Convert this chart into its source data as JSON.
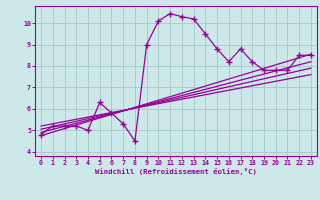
{
  "xlabel": "Windchill (Refroidissement éolien,°C)",
  "bg_color": "#cce8e8",
  "grid_color": "#aacccc",
  "line_color": "#990099",
  "xlim": [
    -0.5,
    23.5
  ],
  "ylim": [
    3.8,
    10.8
  ],
  "xticks": [
    0,
    1,
    2,
    3,
    4,
    5,
    6,
    7,
    8,
    9,
    10,
    11,
    12,
    13,
    14,
    15,
    16,
    17,
    18,
    19,
    20,
    21,
    22,
    23
  ],
  "yticks": [
    4,
    5,
    6,
    7,
    8,
    9,
    10
  ],
  "main_x": [
    0,
    1,
    2,
    3,
    4,
    5,
    6,
    7,
    8,
    9,
    10,
    11,
    12,
    13,
    14,
    15,
    16,
    17,
    18,
    19,
    20,
    21,
    22,
    23
  ],
  "main_y": [
    4.8,
    5.2,
    5.2,
    5.2,
    5.0,
    6.3,
    5.8,
    5.3,
    4.5,
    9.0,
    10.1,
    10.45,
    10.3,
    10.2,
    9.5,
    8.8,
    8.2,
    8.8,
    8.2,
    7.8,
    7.8,
    7.8,
    8.5,
    8.5
  ],
  "reg_lines": [
    {
      "x": [
        0,
        23
      ],
      "y": [
        4.75,
        8.55
      ]
    },
    {
      "x": [
        0,
        23
      ],
      "y": [
        4.9,
        8.2
      ]
    },
    {
      "x": [
        0,
        23
      ],
      "y": [
        5.05,
        7.9
      ]
    },
    {
      "x": [
        0,
        23
      ],
      "y": [
        5.2,
        7.6
      ]
    }
  ]
}
